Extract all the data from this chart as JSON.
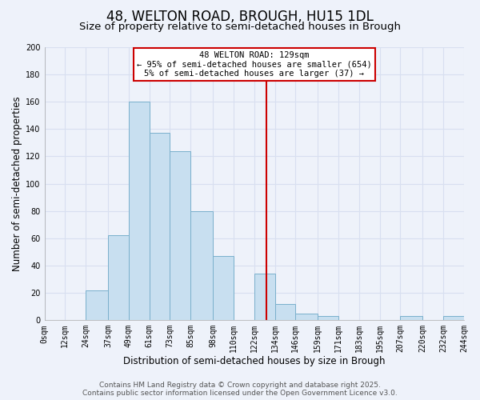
{
  "title": "48, WELTON ROAD, BROUGH, HU15 1DL",
  "subtitle": "Size of property relative to semi-detached houses in Brough",
  "xlabel": "Distribution of semi-detached houses by size in Brough",
  "ylabel": "Number of semi-detached properties",
  "bin_edges": [
    0,
    12,
    24,
    37,
    49,
    61,
    73,
    85,
    98,
    110,
    122,
    134,
    146,
    159,
    171,
    183,
    195,
    207,
    220,
    232,
    244
  ],
  "bin_labels": [
    "0sqm",
    "12sqm",
    "24sqm",
    "37sqm",
    "49sqm",
    "61sqm",
    "73sqm",
    "85sqm",
    "98sqm",
    "110sqm",
    "122sqm",
    "134sqm",
    "146sqm",
    "159sqm",
    "171sqm",
    "183sqm",
    "195sqm",
    "207sqm",
    "220sqm",
    "232sqm",
    "244sqm"
  ],
  "counts": [
    0,
    0,
    22,
    62,
    160,
    137,
    124,
    80,
    47,
    0,
    34,
    12,
    5,
    3,
    0,
    0,
    0,
    3,
    0,
    3
  ],
  "bar_color": "#c8dff0",
  "bar_edge_color": "#7ab0cc",
  "vline_x": 129,
  "vline_color": "#cc0000",
  "annotation_title": "48 WELTON ROAD: 129sqm",
  "annotation_line1": "← 95% of semi-detached houses are smaller (654)",
  "annotation_line2": "5% of semi-detached houses are larger (37) →",
  "annotation_box_color": "#ffffff",
  "annotation_box_edge": "#cc0000",
  "ylim": [
    0,
    200
  ],
  "yticks": [
    0,
    20,
    40,
    60,
    80,
    100,
    120,
    140,
    160,
    180,
    200
  ],
  "footer_line1": "Contains HM Land Registry data © Crown copyright and database right 2025.",
  "footer_line2": "Contains public sector information licensed under the Open Government Licence v3.0.",
  "bg_color": "#eef2fa",
  "grid_color": "#d8dff0",
  "title_fontsize": 12,
  "subtitle_fontsize": 9.5,
  "axis_label_fontsize": 8.5,
  "tick_fontsize": 7,
  "footer_fontsize": 6.5,
  "annotation_fontsize": 7.5
}
